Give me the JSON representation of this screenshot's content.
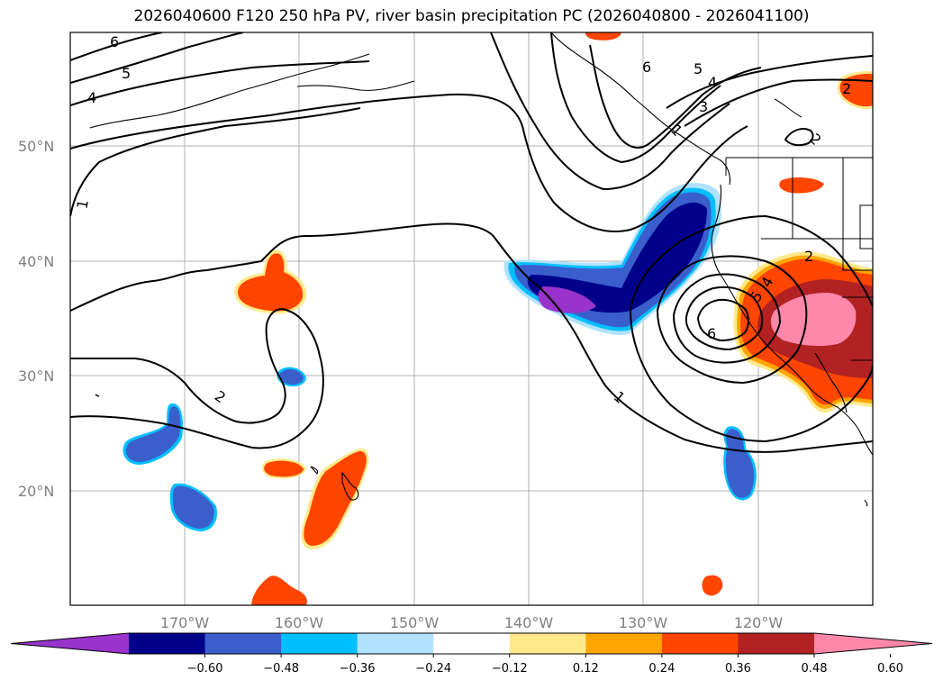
{
  "title": "2026040600 F120 250 hPa PV, river basin precipitation PC (2026040800 - 2026041100)",
  "latitude_labels": [
    "50°N",
    "40°N",
    "30°N",
    "20°N"
  ],
  "longitude_labels": [
    "170°W",
    "160°W",
    "150°W",
    "140°W",
    "130°W",
    "120°W"
  ],
  "contour_labels": [
    "6",
    "5",
    "4",
    "1",
    "2",
    "6",
    "5",
    "4",
    "3",
    "2",
    "2",
    "1",
    "6",
    "5",
    "4",
    "2",
    "1"
  ],
  "colorbar": {
    "ticks": [
      "−0.60",
      "−0.48",
      "−0.36",
      "−0.24",
      "−0.12",
      "0.12",
      "0.24",
      "0.36",
      "0.48",
      "0.60"
    ],
    "colors": [
      "#9933cc",
      "#00008b",
      "#3a5fcd",
      "#00bfff",
      "#b0e2ff",
      "#ffffff",
      "#ffe98a",
      "#ffa500",
      "#ff4500",
      "#b22222",
      "#ff88aa"
    ]
  },
  "map_colors": {
    "neg_light": "#b0e2ff",
    "neg_cyan": "#00bfff",
    "neg_mid": "#3a5fcd",
    "neg_dark": "#00008b",
    "neg_purple": "#9933cc",
    "pos_yellow": "#ffe98a",
    "pos_orange": "#ffa500",
    "pos_red": "#ff4500",
    "pos_dark": "#b22222",
    "pos_pink": "#ff88aa"
  }
}
